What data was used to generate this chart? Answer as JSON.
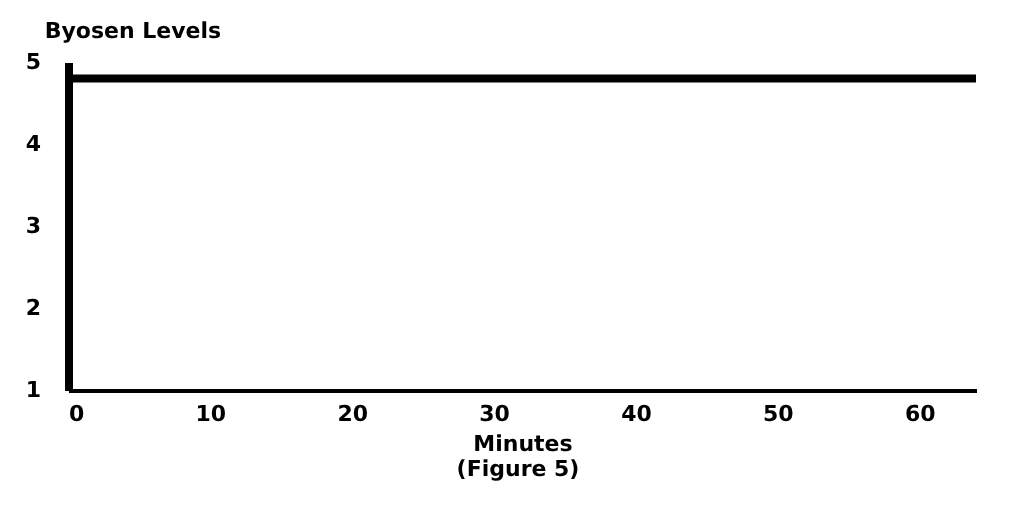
{
  "chart_data": {
    "type": "line",
    "title": "Byosen Levels",
    "xlabel": "Minutes",
    "annotations": [
      "(Figure 5)"
    ],
    "x": [
      0,
      64
    ],
    "series": [
      {
        "color": "#000000",
        "values": [
          4.8,
          4.8
        ]
      }
    ],
    "xlim": [
      0,
      64
    ],
    "xticks": [
      0,
      10,
      20,
      30,
      40,
      50,
      60
    ],
    "ylim": [
      1,
      5
    ],
    "yticks": [
      1,
      2,
      3,
      4,
      5
    ],
    "grid": false,
    "legend": false,
    "marker": "none",
    "line_style": "solid"
  }
}
